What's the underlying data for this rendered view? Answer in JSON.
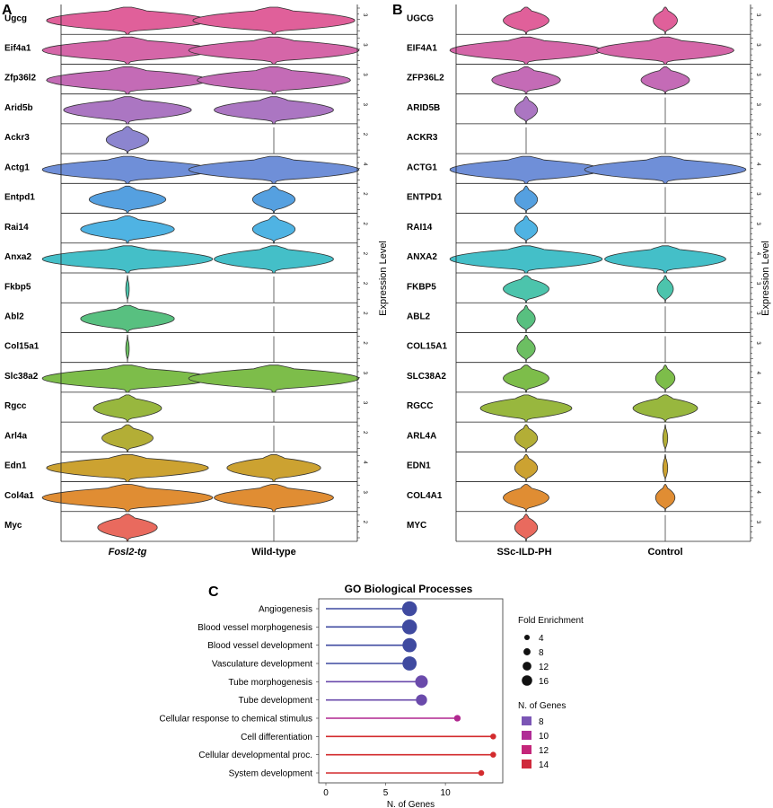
{
  "panels": [
    {
      "letter": "A",
      "ylabel": "Expression Level",
      "groups": [
        "Fosl2-tg",
        "Wild-type"
      ],
      "genes": [
        {
          "name": "Ugcg",
          "tick": "3",
          "color": "#e0609a",
          "w": [
            0.95,
            0.95
          ]
        },
        {
          "name": "Eif4a1",
          "tick": "3",
          "color": "#d566a8",
          "w": [
            1.0,
            1.0
          ]
        },
        {
          "name": "Zfp36l2",
          "tick": "3",
          "color": "#c46bb6",
          "w": [
            0.95,
            0.9
          ]
        },
        {
          "name": "Arid5b",
          "tick": "3",
          "color": "#ab76c2",
          "w": [
            0.75,
            0.7
          ]
        },
        {
          "name": "Ackr3",
          "tick": "2",
          "color": "#8c85cf",
          "w": [
            0.25,
            0.0
          ]
        },
        {
          "name": "Actg1",
          "tick": "4",
          "color": "#6f8fd8",
          "w": [
            1.0,
            1.0
          ]
        },
        {
          "name": "Entpd1",
          "tick": "2",
          "color": "#55a0e0",
          "w": [
            0.45,
            0.25
          ]
        },
        {
          "name": "Rai14",
          "tick": "2",
          "color": "#4fb3e3",
          "w": [
            0.55,
            0.25
          ]
        },
        {
          "name": "Anxa2",
          "tick": "2",
          "color": "#44bfc8",
          "w": [
            1.0,
            0.7
          ]
        },
        {
          "name": "Fkbp5",
          "tick": "2",
          "color": "#4cc4ac",
          "w": [
            0.02,
            0.0
          ]
        },
        {
          "name": "Abl2",
          "tick": "2",
          "color": "#58c080",
          "w": [
            0.55,
            0.0
          ]
        },
        {
          "name": "Col15a1",
          "tick": "2",
          "color": "#6cbf62",
          "w": [
            0.02,
            0.0
          ]
        },
        {
          "name": "Slc38a2",
          "tick": "3",
          "color": "#7dbd4a",
          "w": [
            1.0,
            1.0
          ]
        },
        {
          "name": "Rgcc",
          "tick": "3",
          "color": "#98b73e",
          "w": [
            0.4,
            0.0
          ]
        },
        {
          "name": "Arl4a",
          "tick": "2",
          "color": "#b3ae36",
          "w": [
            0.3,
            0.0
          ]
        },
        {
          "name": "Edn1",
          "tick": "4",
          "color": "#cca231",
          "w": [
            0.95,
            0.55
          ]
        },
        {
          "name": "Col4a1",
          "tick": "3",
          "color": "#e08d33",
          "w": [
            1.0,
            0.7
          ]
        },
        {
          "name": "Myc",
          "tick": "2",
          "color": "#e96a5e",
          "w": [
            0.35,
            0.0
          ]
        }
      ]
    },
    {
      "letter": "B",
      "ylabel": "Expression Level",
      "groups": [
        "SSc-ILD-PH",
        "Control"
      ],
      "genes": [
        {
          "name": "UGCG",
          "tick": "3",
          "color": "#e0609a",
          "w": [
            0.3,
            0.15
          ]
        },
        {
          "name": "EIF4A1",
          "tick": "3",
          "color": "#d566a8",
          "w": [
            1.0,
            0.85
          ]
        },
        {
          "name": "ZFP36L2",
          "tick": "3",
          "color": "#c46bb6",
          "w": [
            0.45,
            0.3
          ]
        },
        {
          "name": "ARID5B",
          "tick": "3",
          "color": "#ab76c2",
          "w": [
            0.15,
            0.0
          ]
        },
        {
          "name": "ACKR3",
          "tick": "2",
          "color": "#8c85cf",
          "w": [
            0.0,
            0.0
          ]
        },
        {
          "name": "ACTG1",
          "tick": "4",
          "color": "#6f8fd8",
          "w": [
            1.0,
            1.0
          ]
        },
        {
          "name": "ENTPD1",
          "tick": "3",
          "color": "#55a0e0",
          "w": [
            0.15,
            0.0
          ]
        },
        {
          "name": "RAI14",
          "tick": "3",
          "color": "#4fb3e3",
          "w": [
            0.15,
            0.0
          ]
        },
        {
          "name": "ANXA2",
          "tick": "4",
          "color": "#44bfc8",
          "w": [
            1.0,
            0.75
          ]
        },
        {
          "name": "FKBP5",
          "tick": "3",
          "color": "#4cc4ac",
          "w": [
            0.3,
            0.1
          ]
        },
        {
          "name": "ABL2",
          "tick": "3",
          "color": "#58c080",
          "w": [
            0.12,
            0.0
          ]
        },
        {
          "name": "COL15A1",
          "tick": "3",
          "color": "#6cbf62",
          "w": [
            0.12,
            0.0
          ]
        },
        {
          "name": "SLC38A2",
          "tick": "4",
          "color": "#7dbd4a",
          "w": [
            0.3,
            0.12
          ]
        },
        {
          "name": "RGCC",
          "tick": "4",
          "color": "#98b73e",
          "w": [
            0.6,
            0.4
          ]
        },
        {
          "name": "ARL4A",
          "tick": "4",
          "color": "#b3ae36",
          "w": [
            0.15,
            0.03
          ]
        },
        {
          "name": "EDN1",
          "tick": "4",
          "color": "#cca231",
          "w": [
            0.15,
            0.03
          ]
        },
        {
          "name": "COL4A1",
          "tick": "4",
          "color": "#e08d33",
          "w": [
            0.3,
            0.12
          ]
        },
        {
          "name": "MYC",
          "tick": "3",
          "color": "#e96a5e",
          "w": [
            0.15,
            0.0
          ]
        }
      ]
    }
  ],
  "panel_c": {
    "letter": "C",
    "title": "GO Biological Processes",
    "xlabel": "N. of Genes",
    "xticks": [
      "0",
      "5",
      "10"
    ],
    "legend_size_title": "Fold Enrichment",
    "legend_size": [
      {
        "label": "4",
        "value": 4
      },
      {
        "label": "8",
        "value": 8
      },
      {
        "label": "12",
        "value": 12
      },
      {
        "label": "16",
        "value": 16
      }
    ],
    "legend_color_title": "N. of Genes",
    "legend_color": [
      {
        "label": "8",
        "color": "#7b55b5"
      },
      {
        "label": "10",
        "color": "#b02c96"
      },
      {
        "label": "12",
        "color": "#c4267a"
      },
      {
        "label": "14",
        "color": "#cf2a3c"
      }
    ]
  },
  "chart_data": {
    "type": "scatter",
    "title": "GO Biological Processes",
    "xlabel": "N. of Genes",
    "xlim": [
      0,
      14.5
    ],
    "categories": [
      "Angiogenesis",
      "Blood vessel morphogenesis",
      "Blood vessel development",
      "Vasculature development",
      "Tube morphogenesis",
      "Tube development",
      "Cellular response to chemical stimulus",
      "Cell differentiation",
      "Cellular developmental proc.",
      "System development"
    ],
    "values": [
      7,
      7,
      7,
      7,
      8,
      8,
      11,
      14,
      14,
      13
    ],
    "fold_enrichment": [
      15,
      15,
      14,
      14,
      12,
      10,
      4,
      3,
      3,
      3
    ],
    "colors": [
      "#3f4aa0",
      "#3f4aa0",
      "#3f4aa0",
      "#3f4aa0",
      "#6a4aab",
      "#6a4aab",
      "#b0278f",
      "#d32b2e",
      "#d32b2e",
      "#d32b2e"
    ]
  }
}
